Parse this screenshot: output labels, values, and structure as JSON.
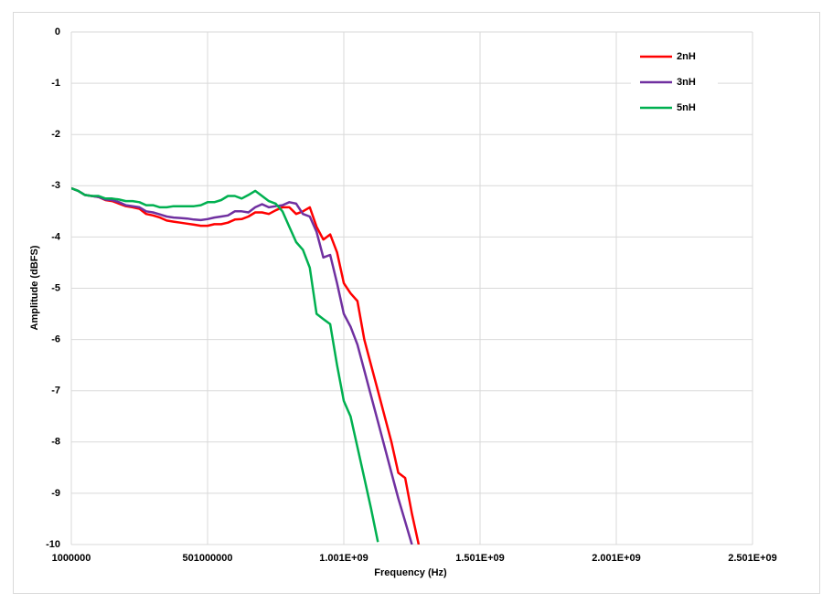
{
  "chart_data": {
    "type": "line",
    "xlabel": "Frequency (Hz)",
    "ylabel": "Amplitude (dBFS)",
    "x": [
      1000000,
      26000000,
      51000000,
      76000000,
      101000000,
      126000000,
      151000000,
      176000000,
      201000000,
      226000000,
      251000000,
      276000000,
      301000000,
      326000000,
      351000000,
      376000000,
      401000000,
      426000000,
      451000000,
      476000000,
      501000000,
      526000000,
      551000000,
      576000000,
      601000000,
      626000000,
      651000000,
      676000000,
      701000000,
      726000000,
      751000000,
      776000000,
      801000000,
      826000000,
      851000000,
      876000000,
      901000000,
      926000000,
      951000000,
      976000000,
      1001000000,
      1026000000,
      1051000000,
      1076000000,
      1101000000,
      1126000000,
      1151000000,
      1176000000,
      1201000000,
      1226000000,
      1251000000,
      1276000000
    ],
    "series": [
      {
        "name": "2nH",
        "color": "#ff0000",
        "values": [
          -3.05,
          -3.1,
          -3.18,
          -3.2,
          -3.22,
          -3.28,
          -3.3,
          -3.35,
          -3.4,
          -3.42,
          -3.45,
          -3.55,
          -3.58,
          -3.62,
          -3.68,
          -3.7,
          -3.72,
          -3.74,
          -3.76,
          -3.78,
          -3.78,
          -3.75,
          -3.75,
          -3.72,
          -3.66,
          -3.65,
          -3.6,
          -3.52,
          -3.52,
          -3.55,
          -3.48,
          -3.42,
          -3.42,
          -3.55,
          -3.5,
          -3.42,
          -3.8,
          -4.05,
          -3.95,
          -4.3,
          -4.9,
          -5.1,
          -5.25,
          -6.0,
          -6.5,
          -7.0,
          -7.5,
          -8.0,
          -8.6,
          -8.7,
          -9.4,
          -10
        ]
      },
      {
        "name": "3nH",
        "color": "#7030a0",
        "values": [
          -3.05,
          -3.1,
          -3.18,
          -3.2,
          -3.22,
          -3.27,
          -3.28,
          -3.32,
          -3.38,
          -3.4,
          -3.42,
          -3.5,
          -3.52,
          -3.56,
          -3.6,
          -3.62,
          -3.63,
          -3.64,
          -3.66,
          -3.67,
          -3.65,
          -3.62,
          -3.6,
          -3.58,
          -3.5,
          -3.5,
          -3.52,
          -3.42,
          -3.36,
          -3.42,
          -3.4,
          -3.38,
          -3.32,
          -3.35,
          -3.55,
          -3.6,
          -3.9,
          -4.4,
          -4.35,
          -4.9,
          -5.5,
          -5.75,
          -6.1,
          -6.6,
          -7.1,
          -7.6,
          -8.1,
          -8.6,
          -9.1,
          -9.55,
          -10,
          null
        ]
      },
      {
        "name": "5nH",
        "color": "#00b050",
        "values": [
          -3.05,
          -3.1,
          -3.18,
          -3.2,
          -3.2,
          -3.25,
          -3.25,
          -3.27,
          -3.3,
          -3.3,
          -3.32,
          -3.38,
          -3.38,
          -3.42,
          -3.42,
          -3.4,
          -3.4,
          -3.4,
          -3.4,
          -3.38,
          -3.32,
          -3.32,
          -3.28,
          -3.2,
          -3.2,
          -3.25,
          -3.18,
          -3.1,
          -3.2,
          -3.3,
          -3.35,
          -3.5,
          -3.8,
          -4.1,
          -4.25,
          -4.6,
          -5.5,
          -5.6,
          -5.7,
          -6.5,
          -7.2,
          -7.5,
          -8.1,
          -8.7,
          -9.3,
          -9.95,
          null,
          null,
          null,
          null,
          null,
          null
        ]
      }
    ],
    "xlim": [
      1000000,
      2501000000
    ],
    "xticks": [
      1000000,
      501000000,
      {
        "value": 1001000000,
        "label": "1.001E+09"
      },
      {
        "value": 1501000000,
        "label": "1.501E+09"
      },
      {
        "value": 2001000000,
        "label": "2.001E+09"
      },
      {
        "value": 2501000000,
        "label": "2.501E+09"
      }
    ],
    "ylim": [
      -10,
      0
    ],
    "yticks": [
      0,
      -1,
      -2,
      -3,
      -4,
      -5,
      -6,
      -7,
      -8,
      -9,
      -10
    ],
    "grid": true,
    "legend": "top-right"
  }
}
